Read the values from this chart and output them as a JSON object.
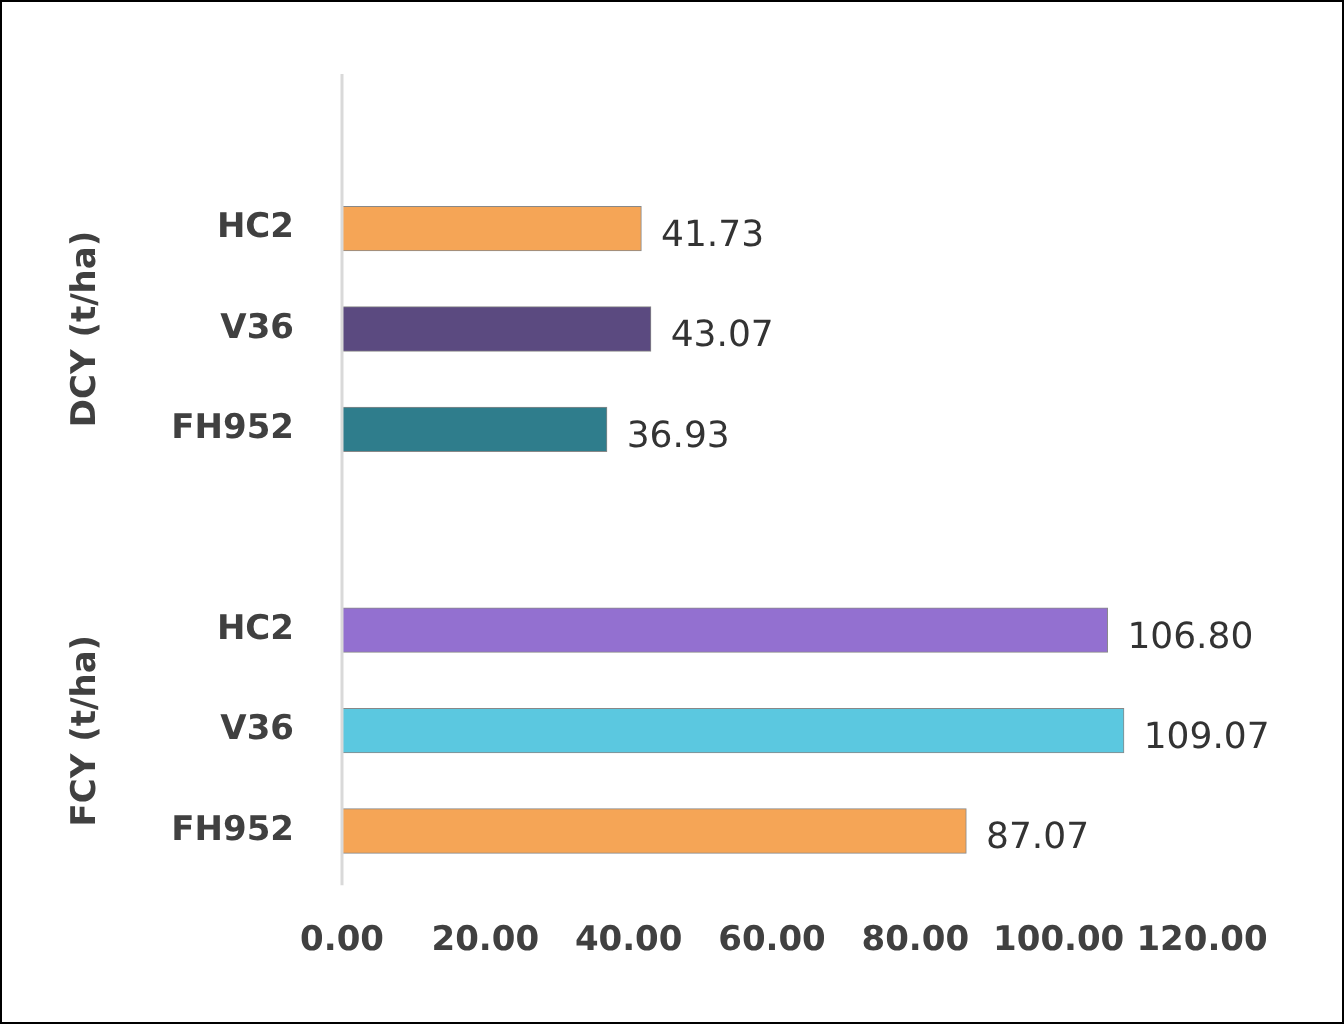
{
  "chart_data": {
    "type": "bar",
    "orientation": "horizontal",
    "categories": [
      null,
      "HC2",
      "V36",
      "FH952",
      null,
      "HC2",
      "V36",
      "FH952"
    ],
    "values": [
      null,
      41.73,
      43.07,
      36.93,
      null,
      106.8,
      109.07,
      87.07
    ],
    "colors": [
      "#f5a556",
      "#f5a556",
      "#5b4a80",
      "#2f7d8c",
      "#f5a556",
      "#9370d0",
      "#5bc8e0",
      "#f5a556"
    ],
    "value_labels": [
      null,
      "41.73",
      "43.07",
      "36.93",
      null,
      "106.80",
      "109.07",
      "87.07"
    ],
    "annotations": [
      "DCY (t/ha)",
      "FCY (t/ha)"
    ],
    "xlim": [
      0,
      120
    ],
    "xticks": [
      {
        "value": 0,
        "label": "0.00"
      },
      {
        "value": 20,
        "label": "20.00"
      },
      {
        "value": 40,
        "label": "40.00"
      },
      {
        "value": 60,
        "label": "60.00"
      },
      {
        "value": 80,
        "label": "80.00"
      },
      {
        "value": 100,
        "label": "100.00"
      },
      {
        "value": 120,
        "label": "120.00"
      }
    ],
    "grid": false,
    "legend": false
  }
}
